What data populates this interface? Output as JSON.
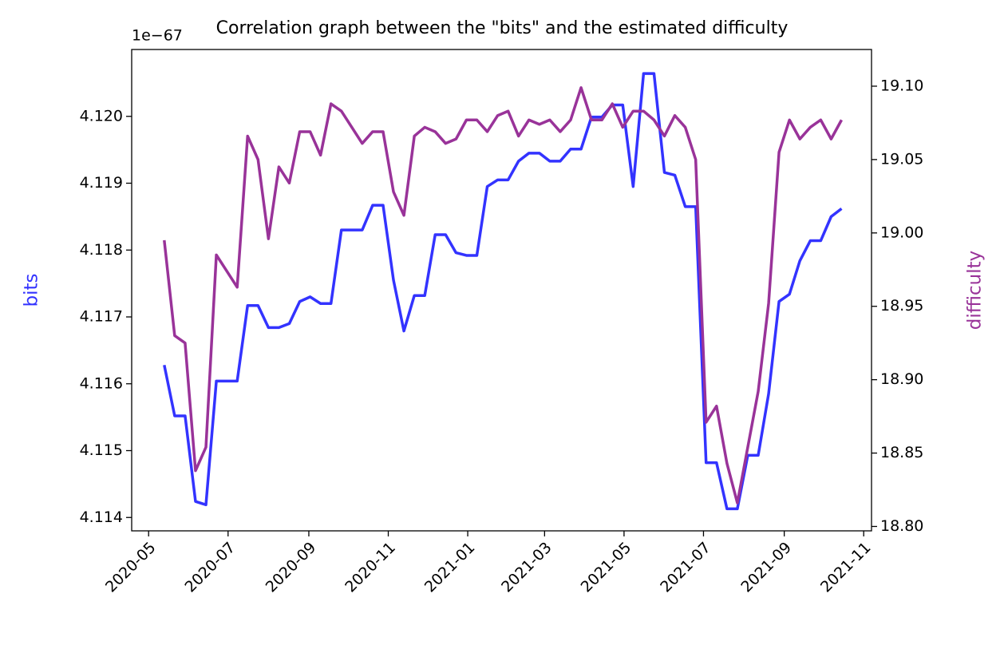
{
  "chart_data": {
    "type": "line",
    "title": "Correlation graph between the \"bits\" and the estimated difficulty",
    "y_label": "bits",
    "y2_label": "difficulty",
    "y_offset_label": "1e−67",
    "x": [
      18395,
      18403,
      18411,
      18419,
      18427,
      18435,
      18443,
      18451,
      18459,
      18467,
      18475,
      18483,
      18491,
      18499,
      18507,
      18515,
      18523,
      18531,
      18539,
      18547,
      18555,
      18563,
      18571,
      18579,
      18587,
      18595,
      18603,
      18611,
      18619,
      18627,
      18635,
      18643,
      18651,
      18659,
      18667,
      18675,
      18683,
      18691,
      18699,
      18707,
      18715,
      18723,
      18731,
      18739,
      18747,
      18755,
      18763,
      18771,
      18779,
      18787,
      18795,
      18803,
      18811,
      18819,
      18827,
      18835,
      18843,
      18851,
      18859,
      18867,
      18875,
      18883,
      18891,
      18899,
      18907,
      18915
    ],
    "series": [
      {
        "name": "bits",
        "color": "#3333ff",
        "values": [
          4.11628,
          4.11552,
          4.11552,
          4.11424,
          4.11419,
          4.11604,
          4.11604,
          4.11604,
          4.11717,
          4.11717,
          4.11684,
          4.11684,
          4.1169,
          4.11723,
          4.1173,
          4.1172,
          4.1172,
          4.1183,
          4.1183,
          4.1183,
          4.11867,
          4.11867,
          4.11755,
          4.11679,
          4.11732,
          4.11732,
          4.11823,
          4.11823,
          4.11796,
          4.11792,
          4.11792,
          4.11895,
          4.11905,
          4.11905,
          4.11933,
          4.11945,
          4.11945,
          4.11933,
          4.11933,
          4.11951,
          4.11951,
          4.11999,
          4.11999,
          4.12017,
          4.12017,
          4.11895,
          4.12064,
          4.12064,
          4.11916,
          4.11912,
          4.11865,
          4.11865,
          4.11482,
          4.11482,
          4.11413,
          4.11413,
          4.11493,
          4.11493,
          4.11585,
          4.11723,
          4.11734,
          4.11784,
          4.11814,
          4.11814,
          4.1185,
          4.11862
        ]
      },
      {
        "name": "difficulty",
        "color": "#993399",
        "axis": "y2",
        "values": [
          18.995,
          18.93,
          18.925,
          18.838,
          18.854,
          18.985,
          18.974,
          18.963,
          19.066,
          19.05,
          18.996,
          19.045,
          19.034,
          19.069,
          19.069,
          19.053,
          19.088,
          19.083,
          19.072,
          19.061,
          19.069,
          19.069,
          19.028,
          19.012,
          19.066,
          19.072,
          19.069,
          19.061,
          19.064,
          19.077,
          19.077,
          19.069,
          19.08,
          19.083,
          19.066,
          19.077,
          19.074,
          19.077,
          19.069,
          19.077,
          19.099,
          19.077,
          19.077,
          19.088,
          19.072,
          19.083,
          19.083,
          19.077,
          19.066,
          19.08,
          19.072,
          19.05,
          18.871,
          18.882,
          18.843,
          18.816,
          18.854,
          18.892,
          18.952,
          19.055,
          19.077,
          19.064,
          19.072,
          19.077,
          19.064,
          19.077
        ]
      }
    ],
    "xlim": [
      18370,
      18938
    ],
    "xticks": [
      {
        "value": 18383,
        "label": "2020-05"
      },
      {
        "value": 18444,
        "label": "2020-07"
      },
      {
        "value": 18506,
        "label": "2020-09"
      },
      {
        "value": 18567,
        "label": "2020-11"
      },
      {
        "value": 18628,
        "label": "2021-01"
      },
      {
        "value": 18687,
        "label": "2021-03"
      },
      {
        "value": 18748,
        "label": "2021-05"
      },
      {
        "value": 18809,
        "label": "2021-07"
      },
      {
        "value": 18871,
        "label": "2021-09"
      },
      {
        "value": 18932,
        "label": "2021-11"
      }
    ],
    "ylim": [
      4.1138,
      4.121
    ],
    "yticks": [
      4.114,
      4.115,
      4.116,
      4.117,
      4.118,
      4.119,
      {
        "value": 4.12,
        "label": "4.120"
      }
    ],
    "y2lim": [
      18.797,
      19.125
    ],
    "y2ticks": [
      {
        "value": 18.8,
        "label": "18.80"
      },
      18.85,
      {
        "value": 18.9,
        "label": "18.90"
      },
      18.95,
      {
        "value": 19,
        "label": "19.00"
      },
      19.05,
      {
        "value": 19.1,
        "label": "19.10"
      }
    ]
  }
}
